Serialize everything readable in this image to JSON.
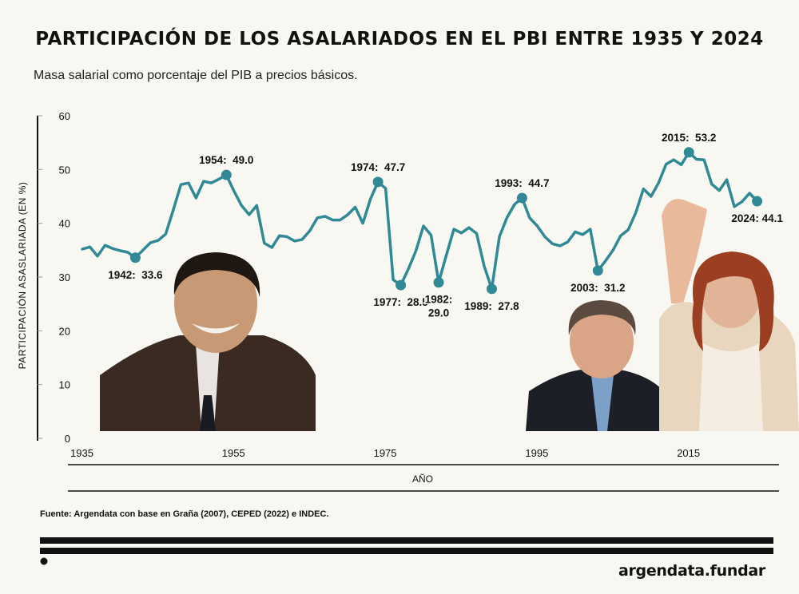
{
  "chart_data": {
    "type": "line",
    "title": "PARTICIPACIÓN DE LOS ASALARIADOS EN EL PBI ENTRE 1935 Y 2024",
    "subtitle": "Masa salarial como porcentaje del PIB a precios básicos.",
    "xlabel": "AÑO",
    "ylabel": "PARTICIPACIÓN ASASLARIADA (EN %)",
    "ylim": [
      0,
      60
    ],
    "xlim": [
      1935,
      2024
    ],
    "yticks": [
      "0",
      "10",
      "20",
      "30",
      "40",
      "50",
      "60"
    ],
    "xticks": [
      "1935",
      "1955",
      "1975",
      "1995",
      "2015"
    ],
    "series": [
      {
        "name": "Participación asalariada",
        "color": "#2f8a96",
        "x": [
          1935,
          1936,
          1937,
          1938,
          1939,
          1940,
          1941,
          1942,
          1943,
          1944,
          1945,
          1946,
          1947,
          1948,
          1949,
          1950,
          1951,
          1952,
          1953,
          1954,
          1955,
          1956,
          1957,
          1958,
          1959,
          1960,
          1961,
          1962,
          1963,
          1964,
          1965,
          1966,
          1967,
          1968,
          1969,
          1970,
          1971,
          1972,
          1973,
          1974,
          1975,
          1976,
          1977,
          1978,
          1979,
          1980,
          1981,
          1982,
          1983,
          1984,
          1985,
          1986,
          1987,
          1988,
          1989,
          1990,
          1991,
          1992,
          1993,
          1994,
          1995,
          1996,
          1997,
          1998,
          1999,
          2000,
          2001,
          2002,
          2003,
          2004,
          2005,
          2006,
          2007,
          2008,
          2009,
          2010,
          2011,
          2012,
          2013,
          2014,
          2015,
          2016,
          2017,
          2018,
          2019,
          2020,
          2021,
          2022,
          2023,
          2024
        ],
        "values": [
          35.2,
          35.6,
          33.9,
          35.9,
          35.3,
          34.9,
          34.6,
          33.6,
          35.0,
          36.4,
          36.8,
          38.0,
          42.5,
          47.2,
          47.5,
          44.7,
          47.8,
          47.5,
          48.2,
          49.0,
          46.0,
          43.3,
          41.6,
          43.3,
          36.3,
          35.5,
          37.7,
          37.5,
          36.7,
          37.0,
          38.6,
          41.0,
          41.3,
          40.6,
          40.6,
          41.6,
          43.0,
          40.0,
          44.5,
          47.7,
          46.5,
          29.5,
          28.5,
          31.5,
          34.9,
          39.5,
          37.8,
          29.0,
          34.0,
          38.9,
          38.2,
          39.2,
          38.1,
          32.0,
          27.8,
          37.5,
          41.0,
          43.5,
          44.7,
          41.0,
          39.5,
          37.5,
          36.2,
          35.8,
          36.5,
          38.4,
          37.9,
          38.9,
          31.2,
          33.0,
          35.0,
          37.7,
          38.8,
          42.0,
          46.4,
          45.0,
          47.5,
          51.0,
          51.8,
          50.9,
          53.2,
          51.9,
          51.8,
          47.3,
          46.1,
          48.1,
          43.1,
          44.0,
          45.6,
          44.1
        ]
      }
    ],
    "annotations": [
      {
        "year": 1942,
        "value": 33.6,
        "label": "1942:  33.6",
        "pos": "below"
      },
      {
        "year": 1954,
        "value": 49.0,
        "label": "1954:  49.0",
        "pos": "above"
      },
      {
        "year": 1974,
        "value": 47.7,
        "label": "1974:  47.7",
        "pos": "above"
      },
      {
        "year": 1977,
        "value": 28.5,
        "label": "1977:  28.5",
        "pos": "below"
      },
      {
        "year": 1982,
        "value": 29.0,
        "label": "1982:",
        "label2": "29.0",
        "pos": "below"
      },
      {
        "year": 1989,
        "value": 27.8,
        "label": "1989:  27.8",
        "pos": "below"
      },
      {
        "year": 1993,
        "value": 44.7,
        "label": "1993:  44.7",
        "pos": "above"
      },
      {
        "year": 2003,
        "value": 31.2,
        "label": "2003:  31.2",
        "pos": "below"
      },
      {
        "year": 2015,
        "value": 53.2,
        "label": "2015:  53.2",
        "pos": "above"
      },
      {
        "year": 2024,
        "value": 44.1,
        "label": "2024: 44.1",
        "pos": "below"
      }
    ],
    "grid": false,
    "legend": "none"
  },
  "source": "Fuente: Argendata con base en Graña (2007), CEPED (2022) e INDEC.",
  "brand": "argendata.fundar"
}
